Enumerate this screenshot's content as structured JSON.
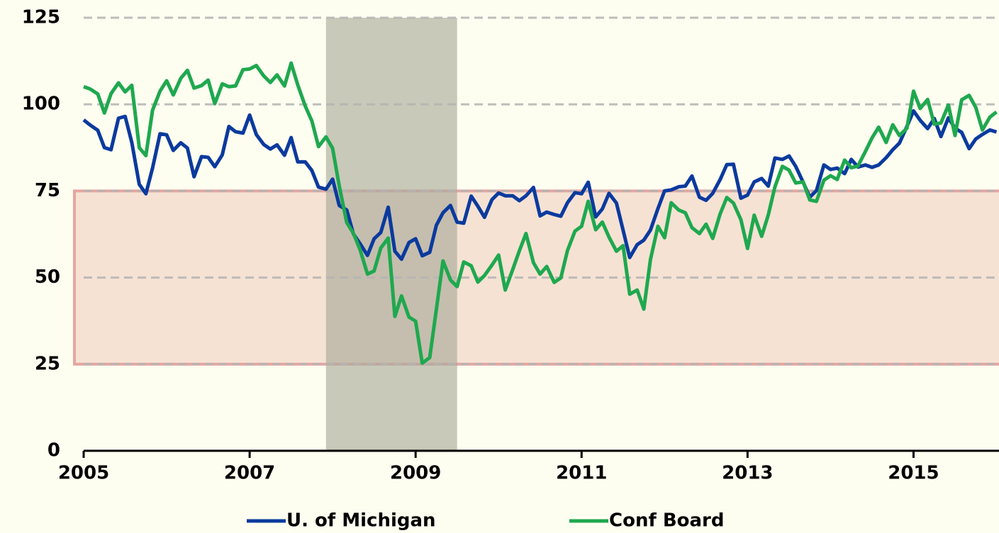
{
  "chart_data": {
    "type": "line",
    "x": [
      2005,
      2005.08,
      2005.17,
      2005.25,
      2005.33,
      2005.42,
      2005.5,
      2005.58,
      2005.67,
      2005.75,
      2005.83,
      2005.92,
      2006,
      2006.08,
      2006.17,
      2006.25,
      2006.33,
      2006.42,
      2006.5,
      2006.58,
      2006.67,
      2006.75,
      2006.83,
      2006.92,
      2007,
      2007.08,
      2007.17,
      2007.25,
      2007.33,
      2007.42,
      2007.5,
      2007.58,
      2007.67,
      2007.75,
      2007.83,
      2007.92,
      2008,
      2008.08,
      2008.17,
      2008.25,
      2008.33,
      2008.42,
      2008.5,
      2008.58,
      2008.67,
      2008.75,
      2008.83,
      2008.92,
      2009,
      2009.08,
      2009.17,
      2009.25,
      2009.33,
      2009.42,
      2009.5,
      2009.58,
      2009.67,
      2009.75,
      2009.83,
      2009.92,
      2010,
      2010.08,
      2010.17,
      2010.25,
      2010.33,
      2010.42,
      2010.5,
      2010.58,
      2010.67,
      2010.75,
      2010.83,
      2010.92,
      2011,
      2011.08,
      2011.17,
      2011.25,
      2011.33,
      2011.42,
      2011.5,
      2011.58,
      2011.67,
      2011.75,
      2011.83,
      2011.92,
      2012,
      2012.08,
      2012.17,
      2012.25,
      2012.33,
      2012.42,
      2012.5,
      2012.58,
      2012.67,
      2012.75,
      2012.83,
      2012.92,
      2013,
      2013.08,
      2013.17,
      2013.25,
      2013.33,
      2013.42,
      2013.5,
      2013.58,
      2013.67,
      2013.75,
      2013.83,
      2013.92,
      2014,
      2014.08,
      2014.17,
      2014.25,
      2014.33,
      2014.42,
      2014.5,
      2014.58,
      2014.67,
      2014.75,
      2014.83,
      2014.92,
      2015,
      2015.08,
      2015.17,
      2015.25,
      2015.33,
      2015.42,
      2015.5,
      2015.58,
      2015.67,
      2015.75,
      2015.83,
      2015.92,
      2016
    ],
    "series": [
      {
        "name": "U. of Michigan",
        "color": "#0b3a9e",
        "values": [
          95.5,
          94,
          92.5,
          87.5,
          86.9,
          96,
          96.5,
          89,
          76.9,
          74.2,
          81.6,
          91.5,
          91.2,
          86.7,
          88.9,
          87.4,
          79.1,
          84.9,
          84.7,
          82,
          85.4,
          93.6,
          92.1,
          91.7,
          96.9,
          91.3,
          88.4,
          87.1,
          88.3,
          85.3,
          90.4,
          83.4,
          83.4,
          80.9,
          76.1,
          75.5,
          78.4,
          70.8,
          69.5,
          62.6,
          59.8,
          56.4,
          61.2,
          63,
          70.3,
          57.6,
          55.3,
          60.1,
          61.2,
          56.3,
          57.3,
          65.1,
          68.7,
          70.8,
          66,
          65.7,
          73.5,
          70.6,
          67.4,
          72.5,
          74.4,
          73.6,
          73.6,
          72.2,
          73.6,
          76,
          67.8,
          68.9,
          68.2,
          67.7,
          71.6,
          74.5,
          74.2,
          77.5,
          67.5,
          69.8,
          74.3,
          71.5,
          63.7,
          55.8,
          59.5,
          60.8,
          63.7,
          69.9,
          75,
          75.3,
          76.2,
          76.4,
          79.3,
          73.2,
          72.3,
          74.3,
          78.3,
          82.6,
          82.7,
          72.9,
          73.8,
          77.6,
          78.6,
          76.4,
          84.5,
          84.1,
          85.1,
          82.1,
          77.5,
          73.2,
          75.1,
          82.5,
          81.2,
          81.6,
          80,
          84.1,
          81.9,
          82.5,
          81.8,
          82.5,
          84.6,
          86.9,
          88.8,
          93.6,
          98.1,
          95.4,
          93,
          95.9,
          90.7,
          96.1,
          93.1,
          91.9,
          87.2,
          90,
          91.3,
          92.6,
          92
        ]
      },
      {
        "name": "Conf Board",
        "color": "#1fa84f",
        "values": [
          105.1,
          104.4,
          103,
          97.5,
          103.1,
          106.2,
          103.6,
          105.5,
          87.5,
          85.2,
          98.3,
          103.8,
          106.8,
          102.7,
          107.5,
          109.8,
          104.7,
          105.4,
          107,
          100.2,
          105.9,
          105.1,
          105.3,
          110,
          110.2,
          111.2,
          108.2,
          106.3,
          108.5,
          105.3,
          111.9,
          105.6,
          99.5,
          95.2,
          87.8,
          90.6,
          87.3,
          76.4,
          65.9,
          62.8,
          58.1,
          51,
          51.9,
          58.5,
          61.4,
          38.8,
          44.7,
          38.6,
          37.4,
          25.3,
          26.9,
          40.8,
          54.8,
          49.3,
          47.4,
          54.5,
          53.4,
          48.7,
          50.6,
          53.6,
          56.5,
          46.4,
          52.3,
          57.7,
          62.7,
          54.3,
          51,
          53.2,
          48.6,
          49.9,
          57.8,
          63.4,
          64.8,
          72,
          63.8,
          66,
          61.7,
          57.6,
          59.2,
          45.2,
          46.4,
          40.9,
          55.2,
          64.8,
          61.5,
          71.6,
          69.5,
          68.7,
          64.4,
          62.7,
          65.4,
          61.3,
          68.4,
          73.1,
          71.5,
          66.7,
          58.4,
          68,
          61.9,
          68.1,
          76.2,
          82.1,
          81,
          77.3,
          77.6,
          72.4,
          72,
          78.1,
          79.4,
          78.3,
          83.9,
          81.7,
          82.2,
          86.4,
          90.3,
          93.4,
          89,
          94.1,
          91,
          93.1,
          103.8,
          98.8,
          101.4,
          94.3,
          94.6,
          99.8,
          91,
          101.3,
          102.6,
          99.1,
          92.6,
          96.3,
          97.8
        ]
      }
    ],
    "xlim": [
      2005,
      2016.03
    ],
    "xticks": [
      2005,
      2007,
      2009,
      2011,
      2013,
      2015
    ],
    "ylim": [
      0,
      125
    ],
    "yticks": [
      0,
      25,
      50,
      75,
      100,
      125
    ],
    "grid": true,
    "shaded_x": [
      2007.92,
      2009.5
    ],
    "shaded_y": [
      25,
      75
    ],
    "legend": "bottom"
  }
}
